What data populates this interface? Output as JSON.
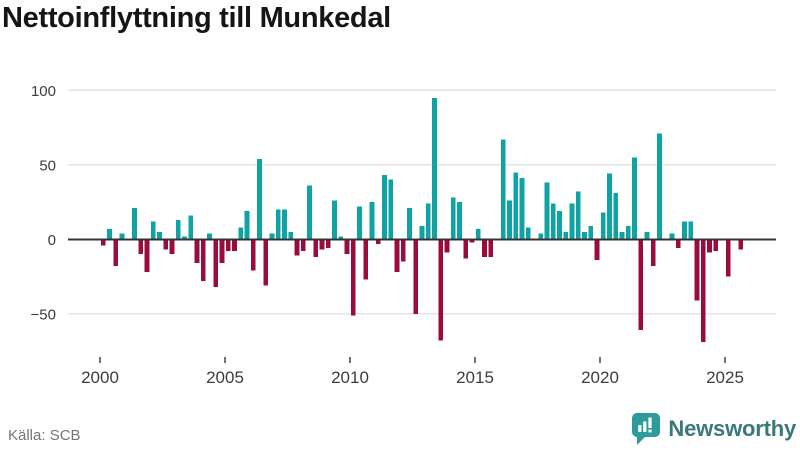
{
  "title": "Nettoinflyttning till Munkedal",
  "source": {
    "label": "Källa: SCB"
  },
  "logo": {
    "text": "Newsworthy"
  },
  "colors": {
    "positive": "#0FA3A3",
    "negative": "#9B0C3C",
    "grid": "#E4E4E4",
    "zero_axis": "#333333",
    "tick_label": "#3D3D3D",
    "tick_mark": "#6F6F6F",
    "title_text": "#151515",
    "source_text": "#757575",
    "logo_teal": "#2D9B9B",
    "logo_text": "#3A797B"
  },
  "chart_data": {
    "type": "bar",
    "title": "Nettoinflyttning till Munkedal",
    "frequency": "quarterly",
    "x_ticks": [
      2000,
      2005,
      2010,
      2015,
      2020,
      2025
    ],
    "y_ticks": [
      100,
      50,
      0,
      -50
    ],
    "ylim": [
      -75,
      105
    ],
    "grid": true,
    "legend": false,
    "periods": [
      "2000Q1",
      "2000Q2",
      "2000Q3",
      "2000Q4",
      "2001Q1",
      "2001Q2",
      "2001Q3",
      "2001Q4",
      "2002Q1",
      "2002Q2",
      "2002Q3",
      "2002Q4",
      "2003Q1",
      "2003Q2",
      "2003Q3",
      "2003Q4",
      "2004Q1",
      "2004Q2",
      "2004Q3",
      "2004Q4",
      "2005Q1",
      "2005Q2",
      "2005Q3",
      "2005Q4",
      "2006Q1",
      "2006Q2",
      "2006Q3",
      "2006Q4",
      "2007Q1",
      "2007Q2",
      "2007Q3",
      "2007Q4",
      "2008Q1",
      "2008Q2",
      "2008Q3",
      "2008Q4",
      "2009Q1",
      "2009Q2",
      "2009Q3",
      "2009Q4",
      "2010Q1",
      "2010Q2",
      "2010Q3",
      "2010Q4",
      "2011Q1",
      "2011Q2",
      "2011Q3",
      "2011Q4",
      "2012Q1",
      "2012Q2",
      "2012Q3",
      "2012Q4",
      "2013Q1",
      "2013Q2",
      "2013Q3",
      "2013Q4",
      "2014Q1",
      "2014Q2",
      "2014Q3",
      "2014Q4",
      "2015Q1",
      "2015Q2",
      "2015Q3",
      "2015Q4",
      "2016Q1",
      "2016Q2",
      "2016Q3",
      "2016Q4",
      "2017Q1",
      "2017Q2",
      "2017Q3",
      "2017Q4",
      "2018Q1",
      "2018Q2",
      "2018Q3",
      "2018Q4",
      "2019Q1",
      "2019Q2",
      "2019Q3",
      "2019Q4",
      "2020Q1",
      "2020Q2",
      "2020Q3",
      "2020Q4",
      "2021Q1",
      "2021Q2",
      "2021Q3",
      "2021Q4",
      "2022Q1",
      "2022Q2",
      "2022Q3",
      "2022Q4",
      "2023Q1",
      "2023Q2",
      "2023Q3",
      "2023Q4",
      "2024Q1",
      "2024Q2",
      "2024Q3",
      "2024Q4",
      "2025Q1",
      "2025Q2",
      "2025Q3"
    ],
    "values": [
      -4,
      7,
      -18,
      4,
      0,
      21,
      -10,
      -22,
      12,
      5,
      -7,
      -10,
      13,
      2,
      16,
      -16,
      -28,
      4,
      -32,
      -16,
      -8,
      -8,
      8,
      19,
      -21,
      54,
      -31,
      4,
      20,
      20,
      5,
      -11,
      -8,
      36,
      -12,
      -7,
      -6,
      26,
      2,
      -10,
      -51,
      22,
      -27,
      25,
      -3,
      43,
      40,
      -22,
      -15,
      21,
      -50,
      9,
      24,
      95,
      -68,
      -9,
      28,
      25,
      -13,
      -2,
      7,
      -12,
      -12,
      0,
      67,
      26,
      45,
      41,
      8,
      0,
      4,
      38,
      24,
      19,
      5,
      24,
      32,
      5,
      9,
      -14,
      18,
      44,
      31,
      5,
      9,
      55,
      -61,
      5,
      -18,
      71,
      0,
      4,
      -6,
      12,
      12,
      -41,
      -69,
      -9,
      -8,
      0,
      -25,
      0,
      -7
    ]
  }
}
